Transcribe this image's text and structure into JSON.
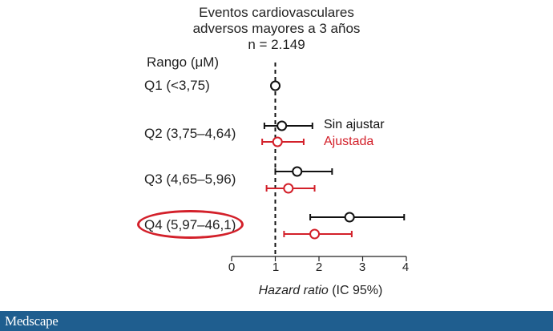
{
  "chart_data": {
    "type": "scatter",
    "title_lines": [
      "Eventos cardiovasculares",
      "adversos mayores a 3 años",
      "n = 2.149"
    ],
    "category_header": "Rango (μM)",
    "categories": [
      "Q1 (<3,75)",
      "Q2 (3,75–4,64)",
      "Q3 (4,65–5,96)",
      "Q4 (5,97–46,1)"
    ],
    "xlabel_italic": "Hazard ratio",
    "xlabel_rest": " (IC 95%)",
    "xlim": [
      0,
      4
    ],
    "xticks": [
      "0",
      "1",
      "2",
      "3",
      "4"
    ],
    "reference_line": 1,
    "highlighted_category": "Q4 (5,97–46,1)",
    "series": [
      {
        "name": "Sin ajustar",
        "color": "#111111",
        "points": [
          {
            "category": "Q1 (<3,75)",
            "hr": 1.0,
            "ci": [
              1.0,
              1.0
            ]
          },
          {
            "category": "Q2 (3,75–4,64)",
            "hr": 1.15,
            "ci": [
              0.75,
              1.85
            ]
          },
          {
            "category": "Q3 (4,65–5,96)",
            "hr": 1.5,
            "ci": [
              1.0,
              2.3
            ]
          },
          {
            "category": "Q4 (5,97–46,1)",
            "hr": 2.7,
            "ci": [
              1.8,
              3.95
            ]
          }
        ]
      },
      {
        "name": "Ajustada",
        "color": "#d3202a",
        "points": [
          {
            "category": "Q2 (3,75–4,64)",
            "hr": 1.05,
            "ci": [
              0.7,
              1.65
            ]
          },
          {
            "category": "Q3 (4,65–5,96)",
            "hr": 1.3,
            "ci": [
              0.8,
              1.9
            ]
          },
          {
            "category": "Q4 (5,97–46,1)",
            "hr": 1.9,
            "ci": [
              1.2,
              2.75
            ]
          }
        ]
      }
    ]
  },
  "footer": {
    "brand": "Medscape",
    "background": "#1f5e8f"
  }
}
